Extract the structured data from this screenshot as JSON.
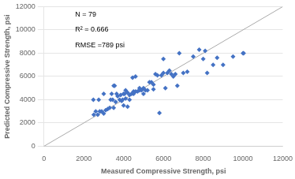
{
  "chart_data": {
    "type": "scatter",
    "xlabel": "Measured Compressive Strength, psi",
    "ylabel": "Predicted Compressive Strength, psi",
    "xlim": [
      0,
      12000
    ],
    "ylim": [
      0,
      12000
    ],
    "xticks": [
      0,
      2000,
      4000,
      6000,
      8000,
      10000,
      12000
    ],
    "yticks": [
      0,
      2000,
      4000,
      6000,
      8000,
      10000,
      12000
    ],
    "grid": "y",
    "annotations": [
      "N = 79",
      "R² = 0.666",
      "RMSE =789 psi"
    ],
    "series": [
      {
        "type": "line",
        "line_style": "solid",
        "color": "#aaaaaa",
        "x": [
          0,
          12000
        ],
        "values": [
          0,
          12000
        ]
      },
      {
        "type": "scatter",
        "marker": "diamond",
        "color": "#4472C4",
        "x": [
          2480,
          2500,
          2600,
          2700,
          2750,
          2800,
          2900,
          3000,
          3000,
          3100,
          3200,
          3300,
          3350,
          3400,
          3450,
          3500,
          3500,
          3550,
          3600,
          3650,
          3700,
          3800,
          3850,
          3900,
          3950,
          4000,
          4000,
          4050,
          4100,
          4100,
          4200,
          4200,
          4300,
          4300,
          4400,
          4450,
          4500,
          4500,
          4600,
          4600,
          4700,
          4800,
          4800,
          4900,
          5000,
          5000,
          5100,
          5200,
          5300,
          5400,
          5500,
          5500,
          5600,
          5700,
          5800,
          5900,
          6000,
          6000,
          6100,
          6200,
          6300,
          6400,
          6500,
          6600,
          6700,
          6800,
          7000,
          7200,
          7500,
          7800,
          8000,
          8100,
          8200,
          8500,
          8700,
          9000,
          9500,
          10000,
          10032
        ],
        "values": [
          4000,
          2700,
          3000,
          2700,
          4000,
          3000,
          3000,
          2800,
          4500,
          3100,
          3200,
          3300,
          4000,
          4500,
          4000,
          3300,
          5200,
          5200,
          3800,
          4500,
          4300,
          4000,
          4400,
          3900,
          4000,
          4500,
          3500,
          4500,
          4100,
          4800,
          3400,
          4600,
          4400,
          4000,
          4500,
          5900,
          4500,
          4700,
          4700,
          6000,
          4700,
          4800,
          5000,
          4800,
          4500,
          5000,
          4800,
          4800,
          5500,
          5500,
          4900,
          5300,
          6200,
          6100,
          2850,
          6100,
          6300,
          7500,
          5000,
          6300,
          6500,
          6200,
          6000,
          6200,
          5200,
          8000,
          6300,
          6400,
          7700,
          8300,
          7500,
          8200,
          6300,
          7000,
          7600,
          7000,
          7700,
          8000,
          8000
        ]
      }
    ]
  }
}
